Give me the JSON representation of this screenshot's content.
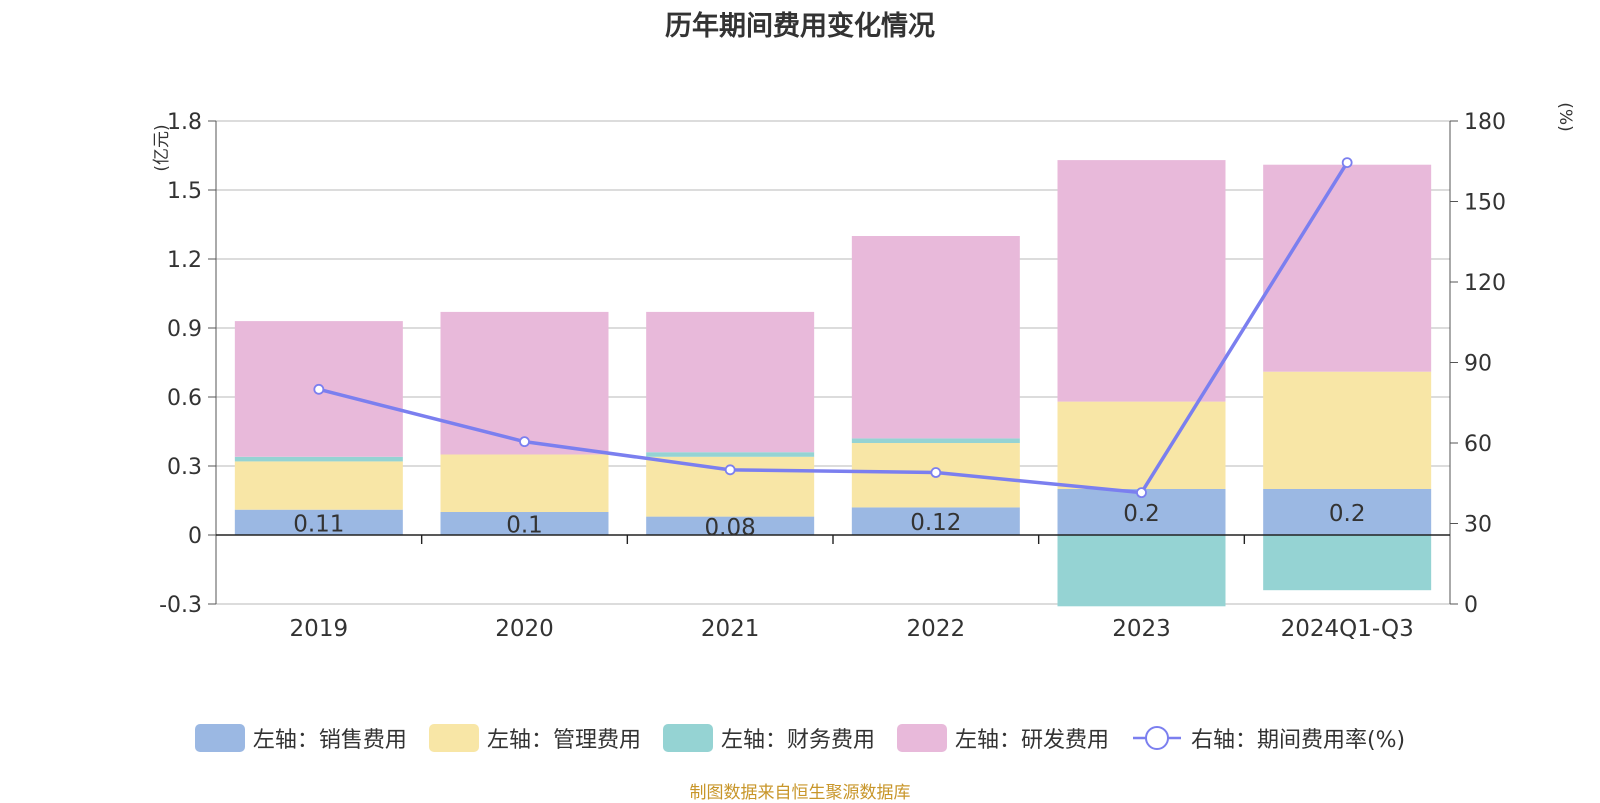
{
  "chart_data": {
    "type": "bar",
    "title": "历年期间费用变化情况",
    "categories": [
      "2019",
      "2020",
      "2021",
      "2022",
      "2023",
      "2024Q1-Q3"
    ],
    "series": [
      {
        "name": "左轴：销售费用",
        "axis": "left",
        "color": "#9bb8e3",
        "values": [
          0.11,
          0.1,
          0.08,
          0.12,
          0.2,
          0.2
        ]
      },
      {
        "name": "左轴：管理费用",
        "axis": "left",
        "color": "#f8e6a6",
        "values": [
          0.21,
          0.25,
          0.26,
          0.28,
          0.38,
          0.51
        ]
      },
      {
        "name": "左轴：财务费用",
        "axis": "left",
        "color": "#95d3d3",
        "values": [
          0.02,
          0.0,
          0.02,
          0.02,
          -0.31,
          -0.24
        ]
      },
      {
        "name": "左轴：研发费用",
        "axis": "left",
        "color": "#e8b9da",
        "values": [
          0.59,
          0.62,
          0.61,
          0.88,
          1.05,
          0.9
        ]
      }
    ],
    "line_series": {
      "name": "右轴：期间费用率(%)",
      "axis": "right",
      "color": "#7b7fef",
      "values": [
        80,
        60.5,
        50,
        49,
        41.5,
        164.5
      ]
    },
    "data_labels": [
      "0.11",
      "0.1",
      "0.08",
      "0.12",
      "0.2",
      "0.2"
    ],
    "left_axis": {
      "label": "(亿元)",
      "ylim": [
        -0.3,
        1.8
      ],
      "ticks": [
        -0.3,
        0,
        0.3,
        0.6,
        0.9,
        1.2,
        1.5,
        1.8
      ],
      "tick_labels": [
        "-0.3",
        "0",
        "0.3",
        "0.6",
        "0.9",
        "1.2",
        "1.5",
        "1.8"
      ]
    },
    "right_axis": {
      "label": "(%)",
      "ylim": [
        0,
        180
      ],
      "ticks": [
        0,
        30,
        60,
        90,
        120,
        150,
        180
      ],
      "tick_labels": [
        "0",
        "30",
        "60",
        "90",
        "120",
        "150",
        "180"
      ]
    },
    "grid": true,
    "legend_position": "bottom"
  },
  "source": "制图数据来自恒生聚源数据库"
}
